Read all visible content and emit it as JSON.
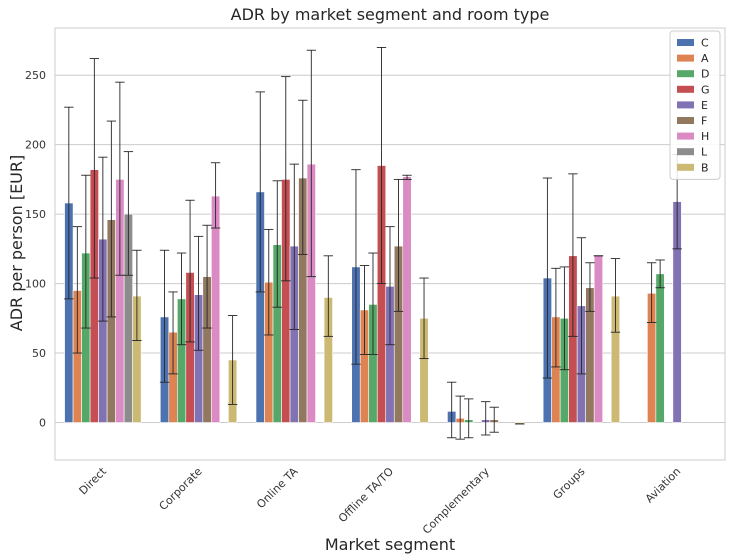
{
  "chart_data": {
    "type": "bar",
    "title": "ADR by market segment and room type",
    "xlabel": "Market segment",
    "ylabel": "ADR per person [EUR]",
    "ylim": [
      -27,
      284
    ],
    "yticks": [
      0,
      50,
      100,
      150,
      200,
      250
    ],
    "grid": "horizontal",
    "legend_position": "top-right",
    "categories": [
      "Direct",
      "Corporate",
      "Online TA",
      "Offline TA/TO",
      "Complementary",
      "Groups",
      "Aviation"
    ],
    "series": [
      {
        "name": "C",
        "color": "#4c72b0",
        "values": [
          158,
          76,
          166,
          112,
          8,
          104,
          null
        ],
        "err_low": [
          89,
          29,
          94,
          42,
          -11,
          32,
          null
        ],
        "err_high": [
          227,
          124,
          238,
          182,
          29,
          176,
          null
        ]
      },
      {
        "name": "A",
        "color": "#dd8452",
        "values": [
          95,
          65,
          101,
          81,
          3,
          76,
          93
        ],
        "err_low": [
          50,
          35,
          63,
          49,
          -12,
          40,
          72
        ],
        "err_high": [
          141,
          94,
          139,
          113,
          19,
          111,
          115
        ]
      },
      {
        "name": "D",
        "color": "#55a868",
        "values": [
          122,
          89,
          128,
          85,
          2,
          75,
          107
        ],
        "err_low": [
          68,
          56,
          83,
          49,
          -11,
          38,
          97
        ],
        "err_high": [
          178,
          122,
          174,
          122,
          17,
          112,
          117
        ]
      },
      {
        "name": "G",
        "color": "#c44e52",
        "values": [
          182,
          108,
          175,
          185,
          null,
          120,
          null
        ],
        "err_low": [
          104,
          58,
          102,
          100,
          null,
          62,
          null
        ],
        "err_high": [
          262,
          160,
          249,
          270,
          null,
          179,
          null
        ]
      },
      {
        "name": "E",
        "color": "#8172b3",
        "values": [
          132,
          92,
          127,
          98,
          2,
          84,
          159
        ],
        "err_low": [
          73,
          52,
          67,
          56,
          -9,
          35,
          125
        ],
        "err_high": [
          191,
          134,
          186,
          141,
          15,
          133,
          193
        ]
      },
      {
        "name": "F",
        "color": "#937860",
        "values": [
          146,
          105,
          176,
          127,
          2,
          97,
          null
        ],
        "err_low": [
          76,
          68,
          121,
          80,
          -7,
          80,
          null
        ],
        "err_high": [
          217,
          142,
          232,
          175,
          11,
          115,
          null
        ]
      },
      {
        "name": "H",
        "color": "#da8bc3",
        "values": [
          175,
          163,
          186,
          177,
          null,
          120,
          null
        ],
        "err_low": [
          106,
          140,
          105,
          175,
          null,
          120,
          null
        ],
        "err_high": [
          245,
          187,
          268,
          178,
          null,
          120,
          null
        ]
      },
      {
        "name": "L",
        "color": "#8c8c8c",
        "values": [
          150,
          null,
          null,
          null,
          null,
          null,
          null
        ],
        "err_low": [
          106,
          null,
          null,
          null,
          null,
          null,
          null
        ],
        "err_high": [
          195,
          null,
          null,
          null,
          null,
          null,
          null
        ]
      },
      {
        "name": "B",
        "color": "#ccb974",
        "values": [
          91,
          45,
          90,
          75,
          -1,
          91,
          null
        ],
        "err_low": [
          59,
          13,
          62,
          46,
          -1,
          65,
          null
        ],
        "err_high": [
          124,
          77,
          120,
          104,
          -1,
          118,
          null
        ]
      }
    ]
  }
}
